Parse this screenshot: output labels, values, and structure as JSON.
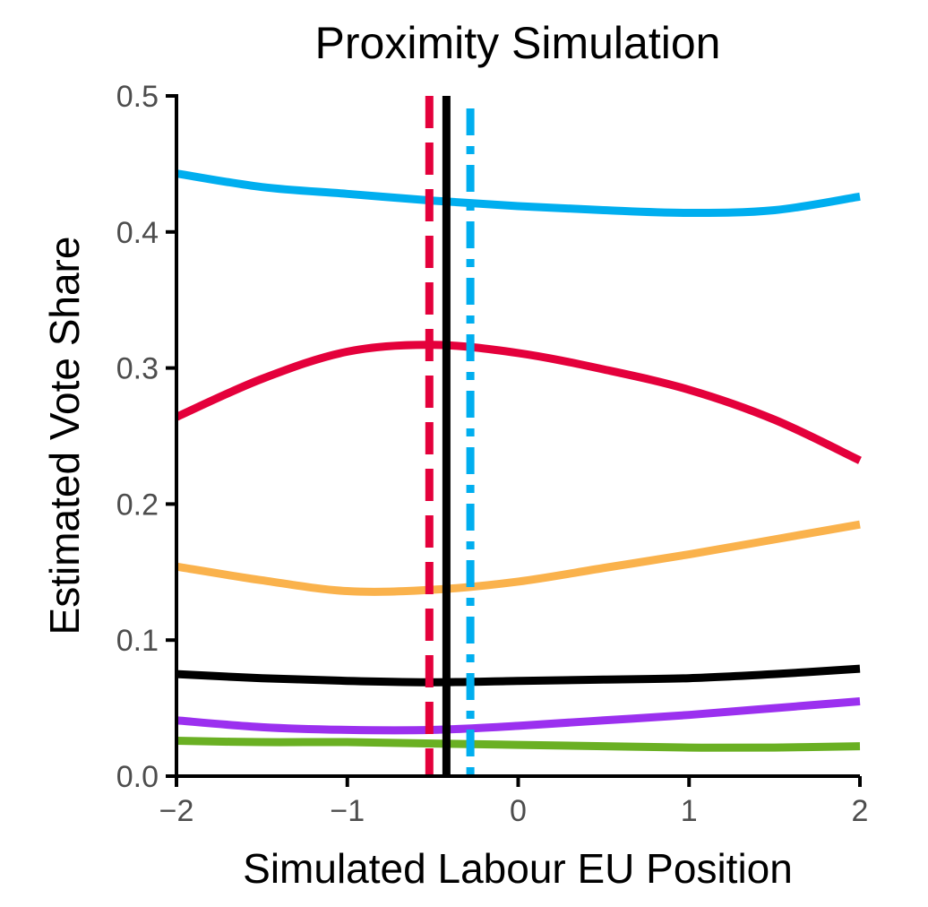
{
  "chart_data": {
    "type": "line",
    "title": "Proximity Simulation",
    "xlabel": "Simulated Labour EU Position",
    "ylabel": "Estimated Vote Share",
    "xlim": [
      -2,
      2
    ],
    "ylim": [
      0,
      0.5
    ],
    "x_ticks": [
      -2,
      -1,
      0,
      1,
      2
    ],
    "x_tick_labels": [
      "−2",
      "−1",
      "0",
      "1",
      "2"
    ],
    "y_ticks": [
      0,
      0.1,
      0.2,
      0.3,
      0.4,
      0.5
    ],
    "y_tick_labels": [
      "0.0",
      "0.1",
      "0.2",
      "0.3",
      "0.4",
      "0.5"
    ],
    "grid": false,
    "legend": "none",
    "x": [
      -2,
      -1.5,
      -1,
      -0.5,
      0,
      0.5,
      1,
      1.5,
      2
    ],
    "series": [
      {
        "color": "#00AEEF",
        "values": [
          0.443,
          0.433,
          0.428,
          0.423,
          0.419,
          0.416,
          0.414,
          0.416,
          0.426
        ]
      },
      {
        "color": "#E4003B",
        "values": [
          0.264,
          0.292,
          0.312,
          0.317,
          0.311,
          0.299,
          0.284,
          0.262,
          0.232
        ]
      },
      {
        "color": "#FAB24C",
        "values": [
          0.154,
          0.144,
          0.136,
          0.137,
          0.143,
          0.153,
          0.163,
          0.174,
          0.185
        ]
      },
      {
        "color": "#000000",
        "values": [
          0.075,
          0.072,
          0.07,
          0.069,
          0.07,
          0.071,
          0.072,
          0.075,
          0.079
        ]
      },
      {
        "color": "#9B30EF",
        "values": [
          0.041,
          0.036,
          0.034,
          0.034,
          0.037,
          0.041,
          0.045,
          0.05,
          0.055
        ]
      },
      {
        "color": "#6AB023",
        "values": [
          0.026,
          0.025,
          0.025,
          0.024,
          0.023,
          0.022,
          0.021,
          0.021,
          0.022
        ]
      }
    ],
    "vlines": [
      {
        "x": -0.52,
        "color": "#E4003B",
        "style": "dashed"
      },
      {
        "x": -0.42,
        "color": "#000000",
        "style": "solid"
      },
      {
        "x": -0.28,
        "color": "#00AEEF",
        "style": "dashdot"
      }
    ]
  }
}
